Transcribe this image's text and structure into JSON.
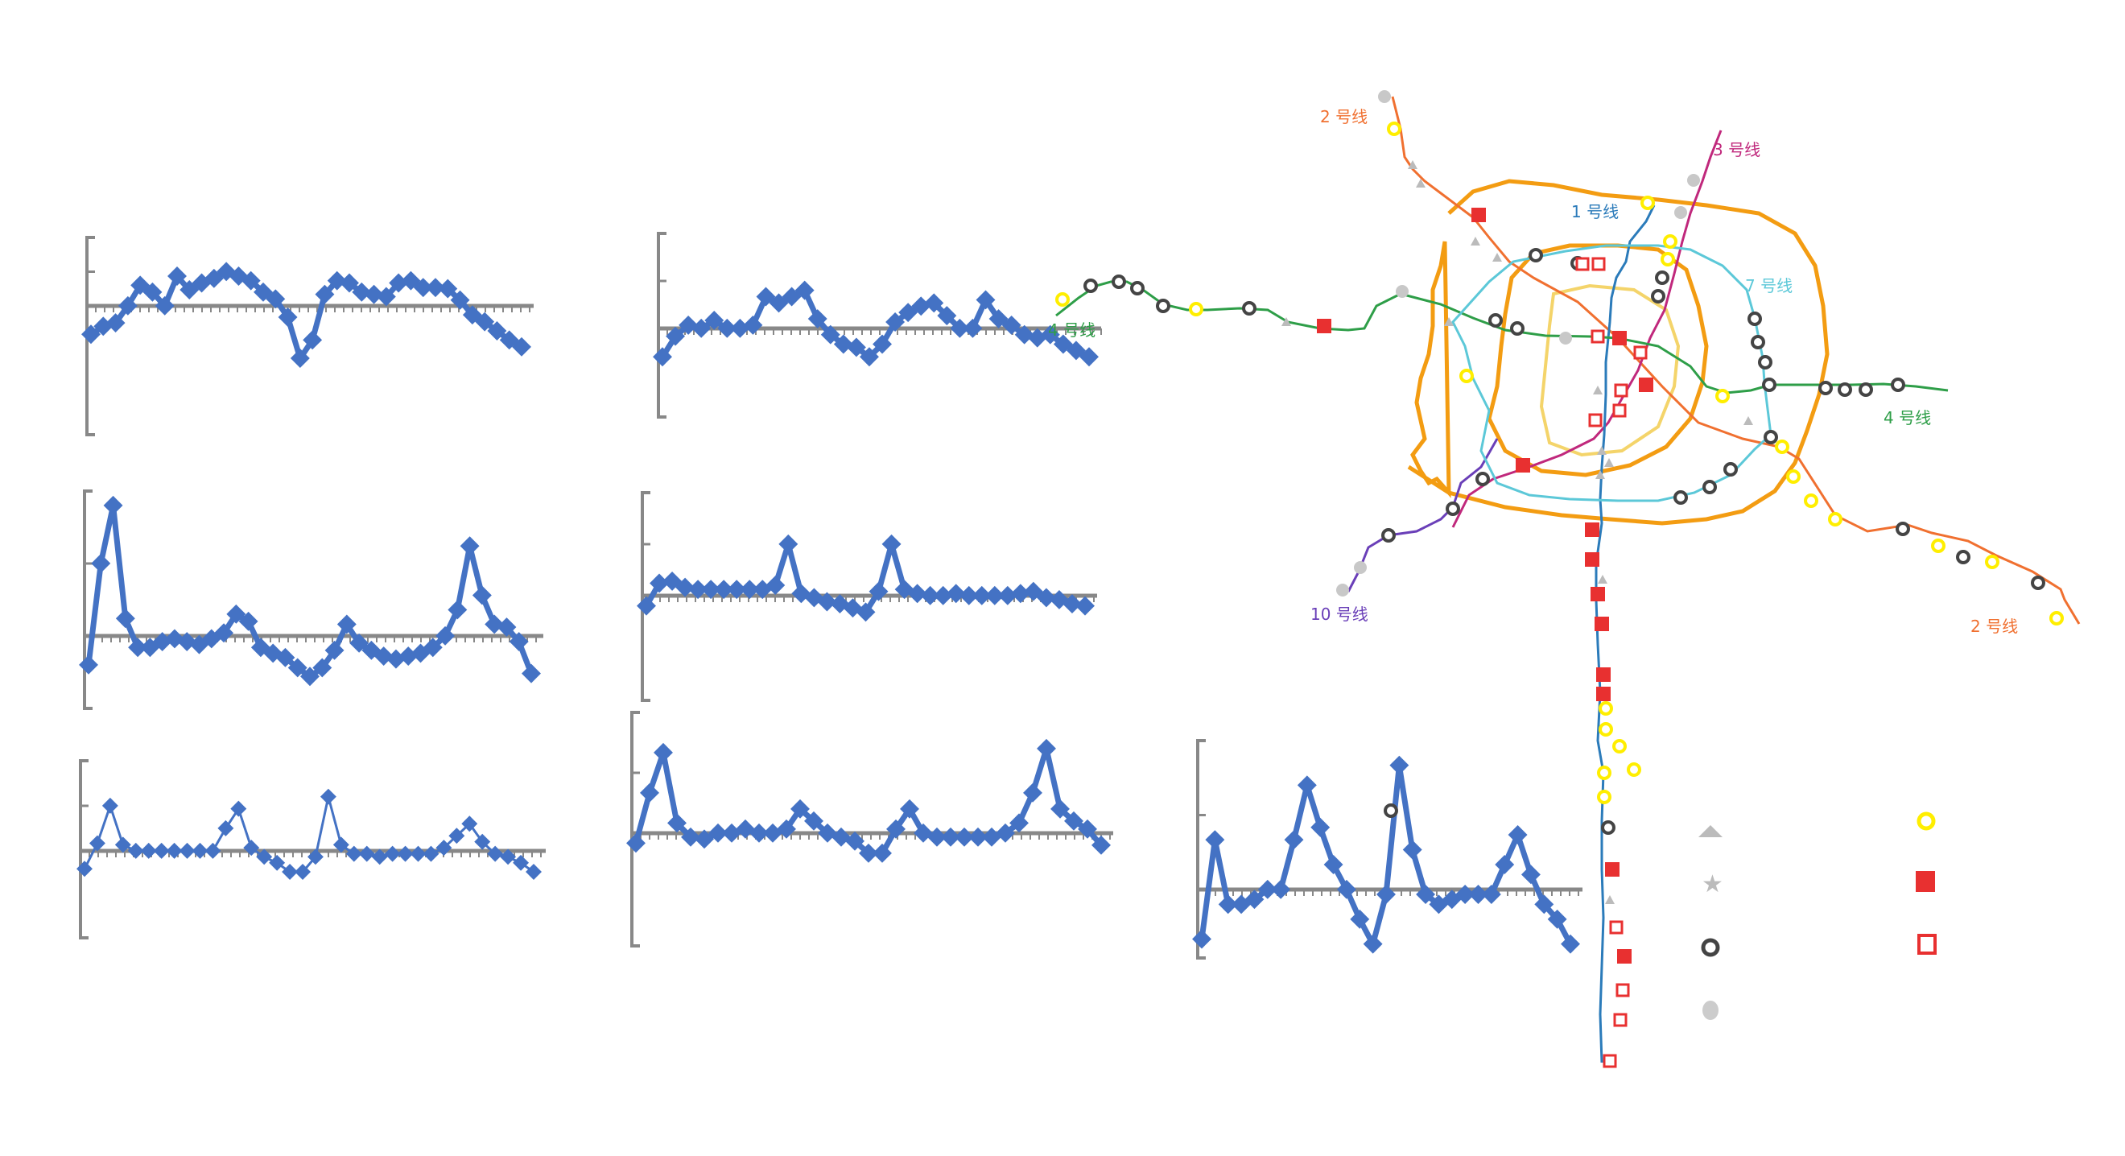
{
  "chart_data": [
    {
      "type": "line",
      "series": [
        {
          "values": [
            -0.25,
            -0.18,
            -0.15,
            0.0,
            0.18,
            0.12,
            0.0,
            0.26,
            0.14,
            0.2,
            0.24,
            0.3,
            0.26,
            0.22,
            0.12,
            0.06,
            -0.1,
            -0.46,
            -0.3,
            0.1,
            0.22,
            0.2,
            0.12,
            0.1,
            0.08,
            0.2,
            0.22,
            0.16,
            0.16,
            0.15,
            0.05,
            -0.08,
            -0.14,
            -0.22,
            -0.3,
            -0.36
          ]
        }
      ],
      "ylim": [
        -0.6,
        0.6
      ]
    },
    {
      "type": "line",
      "series": [
        {
          "values": [
            -0.18,
            -0.05,
            0.02,
            0.0,
            0.05,
            0.0,
            0.0,
            0.02,
            0.2,
            0.16,
            0.2,
            0.24,
            0.06,
            -0.04,
            -0.1,
            -0.12,
            -0.18,
            -0.1,
            0.04,
            0.1,
            0.14,
            0.16,
            0.08,
            0.0,
            0.0,
            0.18,
            0.06,
            0.02,
            -0.04,
            -0.06,
            -0.04,
            -0.1,
            -0.14,
            -0.18
          ]
        }
      ],
      "ylim": [
        -0.6,
        0.6
      ]
    },
    {
      "type": "line",
      "series": [
        {
          "values": [
            -0.2,
            0.5,
            0.9,
            0.12,
            -0.08,
            -0.08,
            -0.04,
            -0.02,
            -0.04,
            -0.06,
            -0.02,
            0.02,
            0.15,
            0.1,
            -0.08,
            -0.12,
            -0.15,
            -0.22,
            -0.28,
            -0.22,
            -0.1,
            0.08,
            -0.05,
            -0.1,
            -0.14,
            -0.16,
            -0.14,
            -0.12,
            -0.08,
            0.0,
            0.18,
            0.62,
            0.28,
            0.08,
            0.06,
            -0.04,
            -0.26
          ]
        }
      ],
      "ylim": [
        -0.5,
        1.0
      ]
    },
    {
      "type": "line",
      "series": [
        {
          "values": [
            -0.1,
            0.12,
            0.14,
            0.08,
            0.06,
            0.06,
            0.06,
            0.06,
            0.06,
            0.06,
            0.1,
            0.5,
            0.02,
            -0.02,
            -0.06,
            -0.08,
            -0.12,
            -0.16,
            0.04,
            0.5,
            0.06,
            0.02,
            0.0,
            0.0,
            0.02,
            0.0,
            0.0,
            0.0,
            0.0,
            0.02,
            0.04,
            -0.02,
            -0.04,
            -0.08,
            -0.1
          ]
        }
      ],
      "ylim": [
        -0.5,
        1.0
      ]
    },
    {
      "type": "line",
      "series": [
        {
          "values": [
            -0.12,
            0.05,
            0.3,
            0.04,
            0.0,
            0.0,
            0.0,
            0.0,
            0.0,
            0.0,
            0.0,
            0.15,
            0.28,
            0.02,
            -0.04,
            -0.08,
            -0.14,
            -0.14,
            -0.04,
            0.36,
            0.04,
            -0.02,
            -0.02,
            -0.04,
            -0.02,
            -0.02,
            -0.02,
            -0.02,
            0.02,
            0.1,
            0.18,
            0.06,
            -0.02,
            -0.04,
            -0.08,
            -0.14
          ]
        }
      ],
      "ylim": [
        -0.6,
        0.6
      ]
    },
    {
      "type": "line",
      "series": [
        {
          "values": [
            -0.05,
            0.2,
            0.4,
            0.05,
            -0.02,
            -0.03,
            0.0,
            0.0,
            0.02,
            0.0,
            0.0,
            0.02,
            0.12,
            0.06,
            0.0,
            -0.02,
            -0.04,
            -0.1,
            -0.1,
            0.02,
            0.12,
            0.0,
            -0.02,
            -0.02,
            -0.02,
            -0.02,
            -0.02,
            0.0,
            0.05,
            0.2,
            0.42,
            0.12,
            0.06,
            0.02,
            -0.06
          ]
        }
      ],
      "ylim": [
        -0.6,
        0.6
      ]
    },
    {
      "type": "line",
      "series": [
        {
          "values": [
            -0.2,
            0.2,
            -0.06,
            -0.06,
            -0.04,
            0.0,
            0.0,
            0.2,
            0.42,
            0.25,
            0.1,
            0.0,
            -0.12,
            -0.22,
            -0.02,
            0.5,
            0.16,
            -0.02,
            -0.06,
            -0.04,
            -0.02,
            -0.02,
            -0.02,
            0.1,
            0.22,
            0.06,
            -0.06,
            -0.12,
            -0.22
          ]
        }
      ],
      "ylim": [
        -0.6,
        0.6
      ]
    }
  ],
  "map": {
    "line_labels": [
      {
        "id": "line2-top",
        "text": "2 号线",
        "color": "#f07030"
      },
      {
        "id": "line3",
        "text": "3 号线",
        "color": "#c0287c"
      },
      {
        "id": "line1",
        "text": "1 号线",
        "color": "#2b7bba"
      },
      {
        "id": "line7",
        "text": "7 号线",
        "color": "#5cc8d8"
      },
      {
        "id": "line4-left",
        "text": "4 号线",
        "color": "#2e9e48"
      },
      {
        "id": "line4-right",
        "text": "4 号线",
        "color": "#2e9e48"
      },
      {
        "id": "line10",
        "text": "10 号线",
        "color": "#6a3fb8"
      },
      {
        "id": "line2-bottom",
        "text": "2 号线",
        "color": "#f07030"
      }
    ],
    "colors": {
      "ring_outer": "#f39c12",
      "ring_mid": "#f39c12",
      "ring_inner": "#f4d46a",
      "hollow_circle": "#ffff00",
      "filled_square": "#e83030",
      "grey_triangle": "#bbbbbb",
      "dark_circle": "#444444"
    },
    "legend_markers": [
      "grey-triangle-icon",
      "grey-star-icon",
      "dark-ring-icon",
      "grey-dot-icon",
      "yellow-ring-icon",
      "red-square-icon",
      "red-hollow-square-icon"
    ]
  }
}
